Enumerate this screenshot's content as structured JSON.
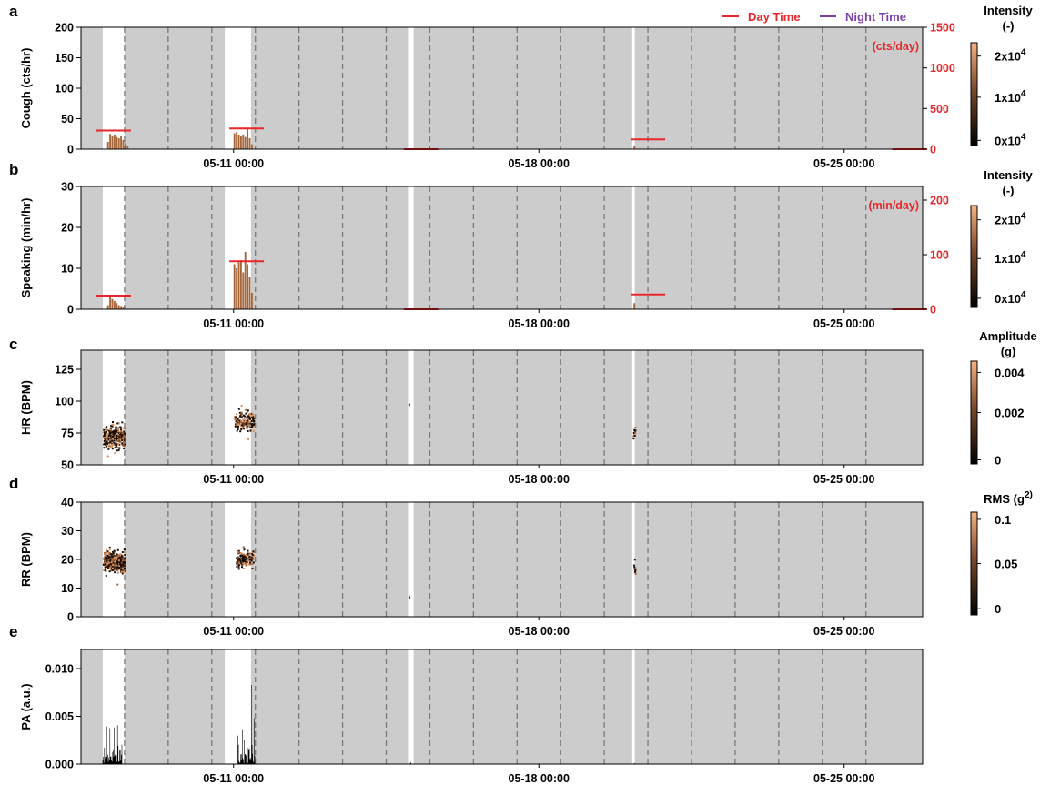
{
  "colors": {
    "night_shade": "#cccccc",
    "day_bg": "#ffffff",
    "dashed": "#7a7a7a",
    "red": "#e8262b",
    "purple": "#7a3fa8",
    "bar": "#a7663a",
    "cbar_top": "#f6b184",
    "cbar_bottom": "#000000"
  },
  "legend": {
    "day_label": "Day Time",
    "night_label": "Night Time"
  },
  "x_tick_labels": [
    "05-11 00:00",
    "05-18 00:00",
    "05-25 00:00"
  ],
  "chart_data": [
    {
      "type": "bar",
      "panel": "a",
      "ylabel": "Cough (cts/hr)",
      "ylim": [
        0,
        200
      ],
      "yticks": [
        "0",
        "50",
        "100",
        "150",
        "200"
      ],
      "right_axis": {
        "ylim": [
          0,
          1500
        ],
        "ticks": [
          "0",
          "500",
          "1000",
          "1500"
        ],
        "unit_label": "(cts/day)"
      },
      "colorbar": {
        "title": [
          "Intensity",
          "(-)"
        ],
        "ticks": [
          "0x10^4",
          "1x10^4",
          "2x10^4"
        ]
      },
      "bursts": [
        {
          "day": 7.1,
          "values": [
            12,
            25,
            22,
            24,
            20,
            18,
            21,
            15,
            10,
            6
          ]
        },
        {
          "day": 10.0,
          "values": [
            26,
            28,
            24,
            22,
            24,
            20,
            33,
            18,
            8
          ]
        },
        {
          "day": 19.17,
          "values": [
            6
          ]
        }
      ],
      "daily_totals": [
        {
          "day": 7.25,
          "value": 230
        },
        {
          "day": 10.3,
          "value": 255
        },
        {
          "day": 14.3,
          "value": 0
        },
        {
          "day": 19.5,
          "value": 120
        },
        {
          "day": 25.5,
          "value": 0
        }
      ]
    },
    {
      "type": "bar",
      "panel": "b",
      "ylabel": "Speaking (min/hr)",
      "ylim": [
        0,
        30
      ],
      "yticks": [
        "0",
        "10",
        "20",
        "30"
      ],
      "right_axis": {
        "ylim": [
          0,
          225
        ],
        "ticks": [
          "0",
          "100",
          "200"
        ],
        "unit_label": "(min/day)"
      },
      "colorbar": {
        "title": [
          "Intensity",
          "(-)"
        ],
        "ticks": [
          "0x10^4",
          "1x10^4",
          "2x10^4"
        ]
      },
      "bursts": [
        {
          "day": 7.1,
          "values": [
            1,
            3,
            2.5,
            2,
            1.5,
            1,
            0.8,
            0.5
          ]
        },
        {
          "day": 10.0,
          "values": [
            11,
            10,
            11.5,
            12,
            9,
            14,
            11,
            8,
            4
          ]
        },
        {
          "day": 19.17,
          "values": [
            1.5
          ]
        }
      ],
      "daily_totals": [
        {
          "day": 7.25,
          "value": 25
        },
        {
          "day": 10.3,
          "value": 88
        },
        {
          "day": 14.3,
          "value": 0
        },
        {
          "day": 19.5,
          "value": 27
        },
        {
          "day": 25.5,
          "value": 0
        }
      ]
    },
    {
      "type": "scatter",
      "panel": "c",
      "ylabel": "HR (BPM)",
      "ylim": [
        50,
        140
      ],
      "yticks": [
        "50",
        "75",
        "100",
        "125"
      ],
      "colorbar": {
        "title": [
          "Amplitude",
          "(g)"
        ],
        "ticks": [
          "0",
          "0.002",
          "0.004"
        ]
      },
      "clusters": [
        {
          "day_start": 7.0,
          "day_end": 7.5,
          "y_mean": 72,
          "y_spread": 9,
          "count": 260
        },
        {
          "day_start": 10.0,
          "day_end": 10.45,
          "y_mean": 84,
          "y_spread": 8,
          "count": 150
        },
        {
          "day_start": 14.0,
          "day_end": 14.02,
          "y_mean": 97,
          "y_spread": 0.5,
          "count": 2
        },
        {
          "day_start": 19.15,
          "day_end": 19.2,
          "y_mean": 77,
          "y_spread": 4,
          "count": 12
        }
      ]
    },
    {
      "type": "scatter",
      "panel": "d",
      "ylabel": "RR (BPM)",
      "ylim": [
        0,
        40
      ],
      "yticks": [
        "0",
        "10",
        "20",
        "30",
        "40"
      ],
      "colorbar": {
        "title": [
          "RMS (g^2)"
        ],
        "ticks": [
          "0",
          "0.05",
          "0.1"
        ]
      },
      "clusters": [
        {
          "day_start": 7.0,
          "day_end": 7.5,
          "y_mean": 19,
          "y_spread": 3.5,
          "count": 420
        },
        {
          "day_start": 10.05,
          "day_end": 10.45,
          "y_mean": 20,
          "y_spread": 3,
          "count": 150
        },
        {
          "day_start": 14.0,
          "day_end": 14.02,
          "y_mean": 7,
          "y_spread": 0.3,
          "count": 2
        },
        {
          "day_start": 19.15,
          "day_end": 19.2,
          "y_mean": 17,
          "y_spread": 2.5,
          "count": 10
        }
      ]
    },
    {
      "type": "line",
      "panel": "e",
      "ylabel": "PA (a.u.)",
      "ylim": [
        0,
        0.012
      ],
      "yticks": [
        "0.000",
        "0.005",
        "0.010"
      ],
      "bursts": [
        {
          "day_start": 7.0,
          "day_end": 7.45,
          "peak": 0.0095
        },
        {
          "day_start": 10.1,
          "day_end": 10.5,
          "peak": 0.01
        },
        {
          "day_start": 14.05,
          "day_end": 14.07,
          "peak": 0.0018
        },
        {
          "day_start": 19.17,
          "day_end": 19.2,
          "peak": 0.0006
        }
      ]
    }
  ],
  "timeline": {
    "x_domain_days": [
      6.5,
      25.8
    ],
    "x_tick_days": [
      10,
      17,
      24
    ],
    "day_windows": [
      [
        7.0,
        7.5
      ],
      [
        9.8,
        10.4
      ],
      [
        14.0,
        14.13
      ],
      [
        19.14,
        19.2
      ]
    ],
    "dashed_days": [
      7.5,
      8.5,
      9.5,
      10.5,
      11.5,
      12.5,
      13.5,
      14.5,
      15.5,
      16.5,
      17.5,
      18.5,
      19.5,
      20.5,
      21.5,
      22.5,
      23.5,
      24.5
    ]
  }
}
